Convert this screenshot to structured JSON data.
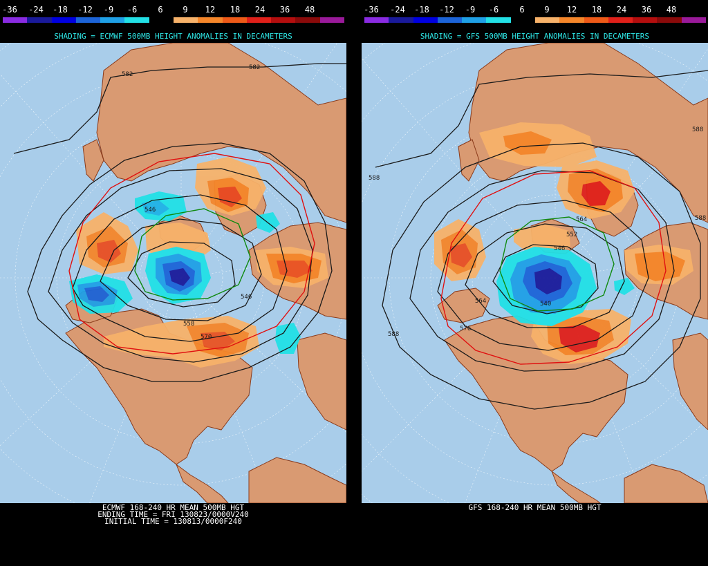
{
  "scale": {
    "labels": [
      "-36",
      "-24",
      "-18",
      "-12",
      "-9",
      "-6",
      "6",
      "9",
      "12",
      "18",
      "24",
      "36",
      "48"
    ],
    "colors": [
      "#8a2be2",
      "#1a1a9a",
      "#0000e0",
      "#1c64d8",
      "#1fa0e6",
      "#22e0e6",
      "#000000",
      "#f7b26a",
      "#f5862a",
      "#ee5a18",
      "#e0201a",
      "#b40e0e",
      "#8a0a0a",
      "#9a1a9a"
    ]
  },
  "left": {
    "shading_title": "SHADING = ECMWF 500MB HEIGHT ANOMALIES IN DECAMETERS",
    "footer": [
      "ECMWF 168-240 HR MEAN 500MB HGT",
      "ENDING TIME = FRI 130823/0000V240",
      "INITIAL TIME = 130813/0000F240"
    ],
    "contour_labels": [
      "582",
      "582",
      "546",
      "546",
      "558",
      "570"
    ]
  },
  "right": {
    "shading_title": "SHADING = GFS 500MB HEIGHT ANOMALIES IN DECAMETERS",
    "footer": [
      "GFS 168-240 HR MEAN 500MB HGT"
    ],
    "contour_labels": [
      "588",
      "588",
      "588",
      "564",
      "552",
      "546",
      "540",
      "564",
      "576",
      "588"
    ]
  },
  "colors": {
    "ocean": "#a9cdea",
    "land": "#d99a72",
    "coast": "#8a3a1a",
    "title_cyan": "#2ee6e6",
    "contour_black": "#1a1a1a",
    "contour_red": "#e01010",
    "contour_green": "#108a10",
    "anom_orange_light": "#f7b26a",
    "anom_orange": "#f5862a",
    "anom_red": "#e0201a",
    "anom_cyan": "#22e0e6",
    "anom_lightblue": "#1fa0e6",
    "anom_blue": "#1c64d8",
    "anom_darkblue": "#1a1a9a"
  }
}
